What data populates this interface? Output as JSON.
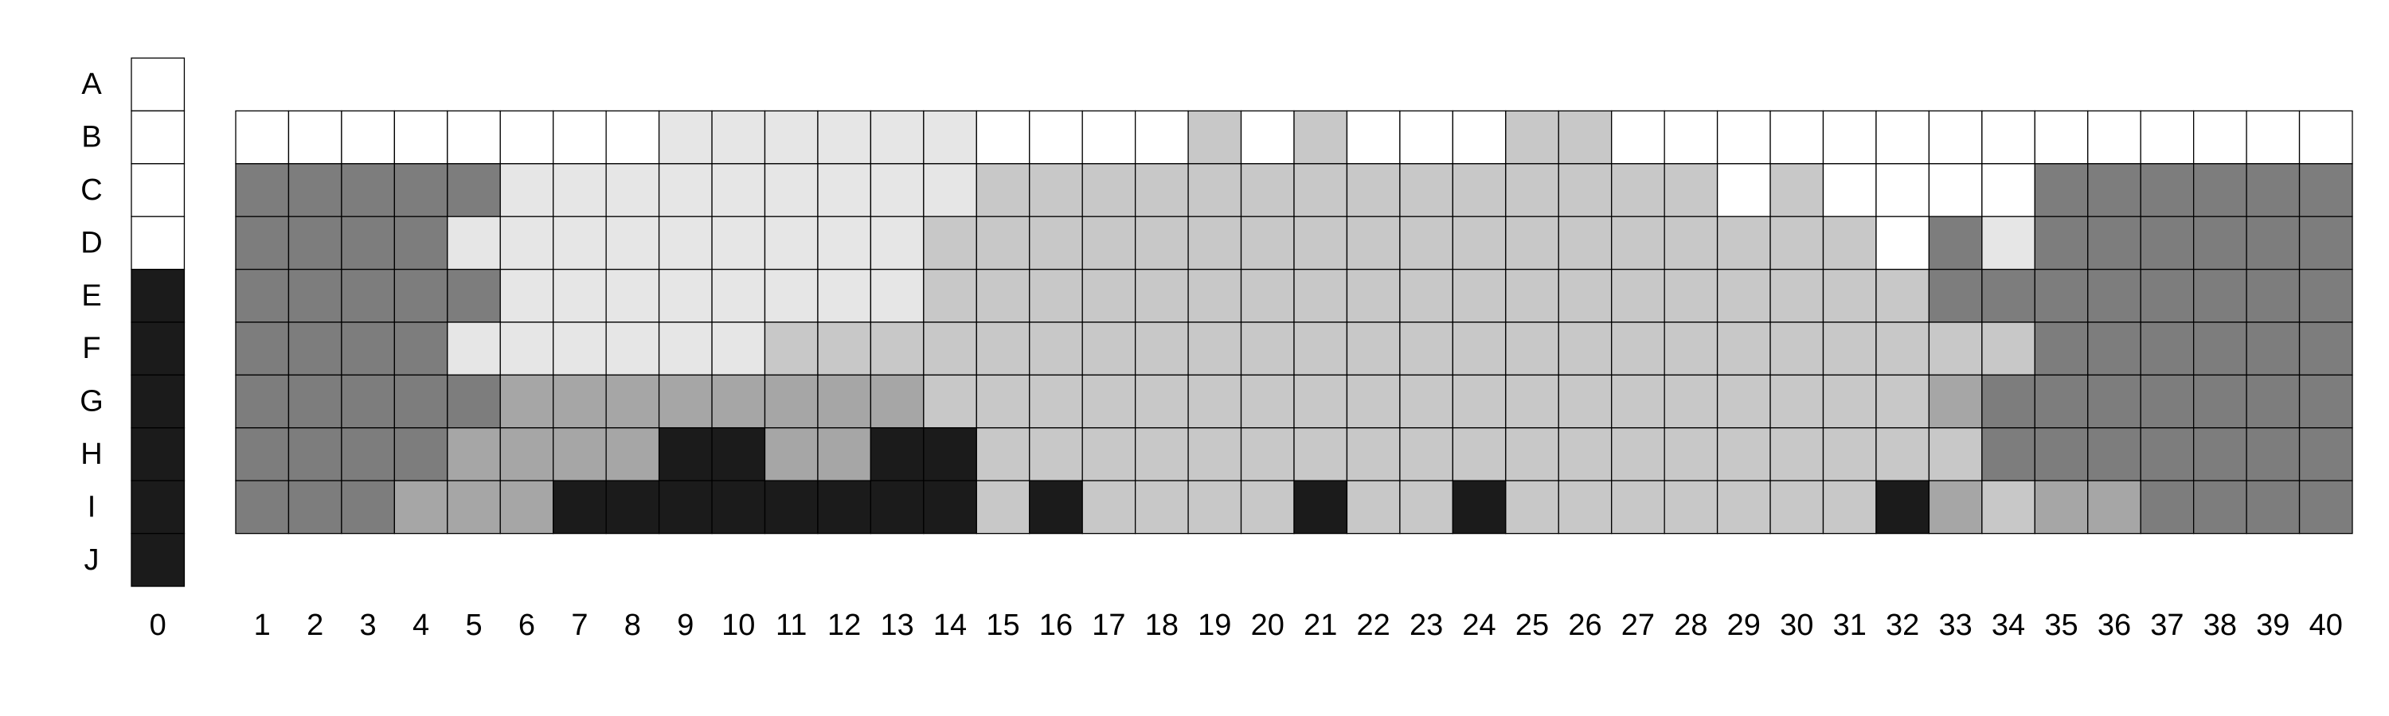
{
  "chart_data": {
    "type": "heatmap",
    "row_labels": [
      "A",
      "B",
      "C",
      "D",
      "E",
      "F",
      "G",
      "H",
      "I",
      "J"
    ],
    "column_labels": [
      "0",
      "1",
      "2",
      "3",
      "4",
      "5",
      "6",
      "7",
      "8",
      "9",
      "10",
      "11",
      "12",
      "13",
      "14",
      "15",
      "16",
      "17",
      "18",
      "19",
      "20",
      "21",
      "22",
      "23",
      "24",
      "25",
      "26",
      "27",
      "28",
      "29",
      "30",
      "31",
      "32",
      "33",
      "34",
      "35",
      "36",
      "37",
      "38",
      "39",
      "40"
    ],
    "legend_column": {
      "column_label": "0",
      "values": [
        "W",
        "W",
        "W",
        "W",
        "K",
        "K",
        "K",
        "K",
        "K",
        "K"
      ]
    },
    "main_grid": {
      "rows": [
        "B",
        "C",
        "D",
        "E",
        "F",
        "G",
        "H",
        "I"
      ],
      "cells": {
        "B": [
          "W",
          "W",
          "W",
          "W",
          "W",
          "W",
          "W",
          "W",
          "L",
          "L",
          "L",
          "L",
          "L",
          "L",
          "W",
          "W",
          "W",
          "W",
          "S",
          "W",
          "S",
          "W",
          "W",
          "W",
          "S",
          "S",
          "W",
          "W",
          "W",
          "W",
          "W",
          "W",
          "W",
          "W",
          "W",
          "W",
          "W",
          "W",
          "W",
          "W"
        ],
        "C": [
          "D",
          "D",
          "D",
          "D",
          "D",
          "L",
          "L",
          "L",
          "L",
          "L",
          "L",
          "L",
          "L",
          "L",
          "S",
          "S",
          "S",
          "S",
          "S",
          "S",
          "S",
          "S",
          "S",
          "S",
          "S",
          "S",
          "S",
          "S",
          "W",
          "S",
          "W",
          "W",
          "W",
          "W",
          "D",
          "D",
          "D",
          "D",
          "D",
          "D"
        ],
        "D": [
          "D",
          "D",
          "D",
          "D",
          "L",
          "L",
          "L",
          "L",
          "L",
          "L",
          "L",
          "L",
          "L",
          "S",
          "S",
          "S",
          "S",
          "S",
          "S",
          "S",
          "S",
          "S",
          "S",
          "S",
          "S",
          "S",
          "S",
          "S",
          "S",
          "S",
          "S",
          "W",
          "D",
          "L",
          "D",
          "D",
          "D",
          "D",
          "D",
          "D"
        ],
        "E": [
          "D",
          "D",
          "D",
          "D",
          "D",
          "L",
          "L",
          "L",
          "L",
          "L",
          "L",
          "L",
          "L",
          "S",
          "S",
          "S",
          "S",
          "S",
          "S",
          "S",
          "S",
          "S",
          "S",
          "S",
          "S",
          "S",
          "S",
          "S",
          "S",
          "S",
          "S",
          "S",
          "D",
          "D",
          "D",
          "D",
          "D",
          "D",
          "D",
          "D"
        ],
        "F": [
          "D",
          "D",
          "D",
          "D",
          "L",
          "L",
          "L",
          "L",
          "L",
          "L",
          "S",
          "S",
          "S",
          "S",
          "S",
          "S",
          "S",
          "S",
          "S",
          "S",
          "S",
          "S",
          "S",
          "S",
          "S",
          "S",
          "S",
          "S",
          "S",
          "S",
          "S",
          "S",
          "S",
          "S",
          "D",
          "D",
          "D",
          "D",
          "D",
          "D"
        ],
        "G": [
          "D",
          "D",
          "D",
          "D",
          "D",
          "M",
          "M",
          "M",
          "M",
          "M",
          "M",
          "M",
          "M",
          "S",
          "S",
          "S",
          "S",
          "S",
          "S",
          "S",
          "S",
          "S",
          "S",
          "S",
          "S",
          "S",
          "S",
          "S",
          "S",
          "S",
          "S",
          "S",
          "M",
          "D",
          "D",
          "D",
          "D",
          "D",
          "D",
          "D"
        ],
        "H": [
          "D",
          "D",
          "D",
          "D",
          "M",
          "M",
          "M",
          "M",
          "K",
          "K",
          "M",
          "M",
          "K",
          "K",
          "S",
          "S",
          "S",
          "S",
          "S",
          "S",
          "S",
          "S",
          "S",
          "S",
          "S",
          "S",
          "S",
          "S",
          "S",
          "S",
          "S",
          "S",
          "S",
          "D",
          "D",
          "D",
          "D",
          "D",
          "D",
          "D"
        ],
        "I": [
          "D",
          "D",
          "D",
          "M",
          "M",
          "M",
          "K",
          "K",
          "K",
          "K",
          "K",
          "K",
          "K",
          "K",
          "S",
          "K",
          "S",
          "S",
          "S",
          "S",
          "K",
          "S",
          "S",
          "K",
          "S",
          "S",
          "S",
          "S",
          "S",
          "S",
          "S",
          "K",
          "M",
          "S",
          "M",
          "M",
          "D",
          "D",
          "D",
          "D"
        ]
      }
    },
    "color_map": {
      "W": "#ffffff",
      "L": "#e6e6e6",
      "S": "#c8c8c8",
      "M": "#a6a6a6",
      "D": "#7d7d7d",
      "K": "#1b1b1b"
    },
    "grid_line_color": "#000000"
  }
}
